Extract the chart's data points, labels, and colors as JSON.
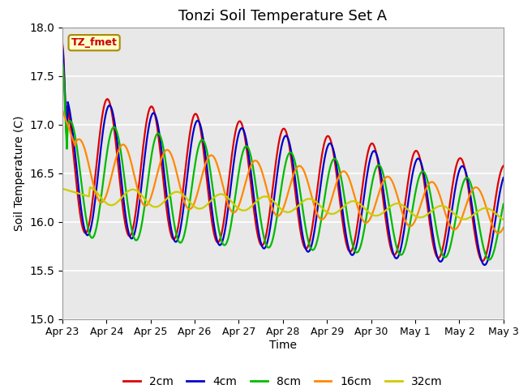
{
  "title": "Tonzi Soil Temperature Set A",
  "xlabel": "Time",
  "ylabel": "Soil Temperature (C)",
  "ylim": [
    15.0,
    18.0
  ],
  "yticks": [
    15.0,
    15.5,
    16.0,
    16.5,
    17.0,
    17.5,
    18.0
  ],
  "legend_label": "TZ_fmet",
  "series_labels": [
    "2cm",
    "4cm",
    "8cm",
    "16cm",
    "32cm"
  ],
  "series_colors": [
    "#dd0000",
    "#0000cc",
    "#00bb00",
    "#ff8800",
    "#cccc00"
  ],
  "bg_color": "#e8e8e8",
  "xtick_labels": [
    "Apr 23",
    "Apr 24",
    "Apr 25",
    "Apr 26",
    "Apr 27",
    "Apr 28",
    "Apr 29",
    "Apr 30",
    "May 1",
    "May 2",
    "May 3"
  ],
  "n_points": 480,
  "n_days": 10
}
